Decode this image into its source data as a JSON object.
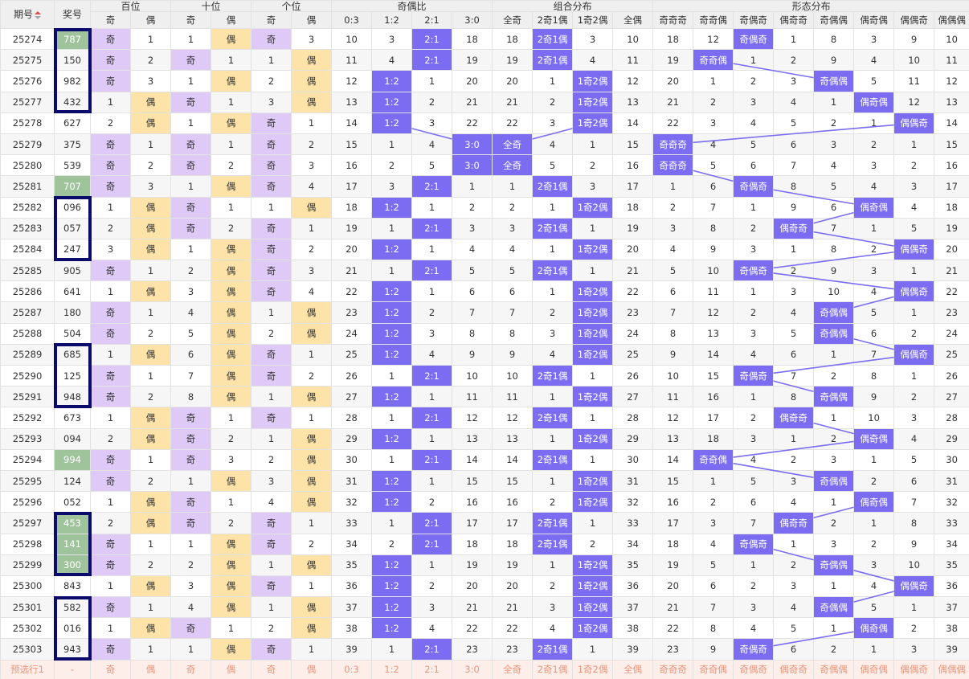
{
  "table": {
    "header": {
      "period": "期号",
      "number": "奖号",
      "groups": [
        {
          "title": "百位",
          "columns": [
            "奇",
            "偶"
          ]
        },
        {
          "title": "十位",
          "columns": [
            "奇",
            "偶"
          ]
        },
        {
          "title": "个位",
          "columns": [
            "奇",
            "偶"
          ]
        },
        {
          "title": "奇偶比",
          "columns": [
            "0:3",
            "1:2",
            "2:1",
            "3:0"
          ]
        },
        {
          "title": "组合分布",
          "columns": [
            "全奇",
            "2奇1偶",
            "1奇2偶",
            "全偶"
          ]
        },
        {
          "title": "形态分布",
          "columns": [
            "奇奇奇",
            "奇奇偶",
            "奇偶奇",
            "偶奇奇",
            "奇偶偶",
            "偶奇偶",
            "偶偶奇",
            "偶偶偶"
          ]
        }
      ]
    },
    "rows": [
      [
        "25274",
        "787",
        "奇",
        1,
        1,
        "偶",
        "奇",
        3,
        10,
        3,
        "2:1",
        18,
        18,
        "2奇1偶",
        3,
        10,
        18,
        12,
        "奇偶奇",
        1,
        8,
        3,
        9,
        10
      ],
      [
        "25275",
        "150",
        "奇",
        2,
        "奇",
        1,
        1,
        "偶",
        11,
        4,
        "2:1",
        19,
        19,
        "2奇1偶",
        4,
        11,
        19,
        "奇奇偶",
        1,
        2,
        9,
        4,
        10,
        11
      ],
      [
        "25276",
        "982",
        "奇",
        3,
        1,
        "偶",
        2,
        "偶",
        12,
        "1:2",
        1,
        20,
        20,
        1,
        "1奇2偶",
        12,
        20,
        1,
        2,
        3,
        "奇偶偶",
        5,
        11,
        12
      ],
      [
        "25277",
        "432",
        1,
        "偶",
        "奇",
        1,
        3,
        "偶",
        13,
        "1:2",
        2,
        21,
        21,
        2,
        "1奇2偶",
        13,
        21,
        2,
        3,
        4,
        1,
        "偶奇偶",
        12,
        13
      ],
      [
        "25278",
        "627",
        2,
        "偶",
        1,
        "偶",
        "奇",
        1,
        14,
        "1:2",
        3,
        22,
        22,
        3,
        "1奇2偶",
        14,
        22,
        3,
        4,
        5,
        2,
        1,
        "偶偶奇",
        14
      ],
      [
        "25279",
        "375",
        "奇",
        1,
        "奇",
        1,
        "奇",
        2,
        15,
        1,
        4,
        "3:0",
        "全奇",
        4,
        1,
        15,
        "奇奇奇",
        4,
        5,
        6,
        3,
        2,
        1,
        15
      ],
      [
        "25280",
        "539",
        "奇",
        2,
        "奇",
        2,
        "奇",
        3,
        16,
        2,
        5,
        "3:0",
        "全奇",
        5,
        2,
        16,
        "奇奇奇",
        5,
        6,
        7,
        4,
        3,
        2,
        16
      ],
      [
        "25281",
        "707",
        "奇",
        3,
        1,
        "偶",
        "奇",
        4,
        17,
        3,
        "2:1",
        1,
        1,
        "2奇1偶",
        3,
        17,
        1,
        6,
        "奇偶奇",
        8,
        5,
        4,
        3,
        17
      ],
      [
        "25282",
        "096",
        1,
        "偶",
        "奇",
        1,
        1,
        "偶",
        18,
        "1:2",
        1,
        2,
        2,
        1,
        "1奇2偶",
        18,
        2,
        7,
        1,
        9,
        6,
        "偶奇偶",
        4,
        18
      ],
      [
        "25283",
        "057",
        2,
        "偶",
        "奇",
        2,
        "奇",
        1,
        19,
        1,
        "2:1",
        3,
        3,
        "2奇1偶",
        1,
        19,
        3,
        8,
        2,
        "偶奇奇",
        7,
        1,
        5,
        19
      ],
      [
        "25284",
        "247",
        3,
        "偶",
        1,
        "偶",
        "奇",
        2,
        20,
        "1:2",
        1,
        4,
        4,
        1,
        "1奇2偶",
        20,
        4,
        9,
        3,
        1,
        8,
        2,
        "偶偶奇",
        20
      ],
      [
        "25285",
        "905",
        "奇",
        1,
        2,
        "偶",
        "奇",
        3,
        21,
        1,
        "2:1",
        5,
        5,
        "2奇1偶",
        1,
        21,
        5,
        10,
        "奇偶奇",
        2,
        9,
        3,
        1,
        21
      ],
      [
        "25286",
        "641",
        1,
        "偶",
        3,
        "偶",
        "奇",
        4,
        22,
        "1:2",
        1,
        6,
        6,
        1,
        "1奇2偶",
        22,
        6,
        11,
        1,
        3,
        10,
        4,
        "偶偶奇",
        22
      ],
      [
        "25287",
        "180",
        "奇",
        1,
        4,
        "偶",
        1,
        "偶",
        23,
        "1:2",
        2,
        7,
        7,
        2,
        "1奇2偶",
        23,
        7,
        12,
        2,
        4,
        "奇偶偶",
        5,
        1,
        23
      ],
      [
        "25288",
        "504",
        "奇",
        2,
        5,
        "偶",
        2,
        "偶",
        24,
        "1:2",
        3,
        8,
        8,
        3,
        "1奇2偶",
        24,
        8,
        13,
        3,
        5,
        "奇偶偶",
        6,
        2,
        24
      ],
      [
        "25289",
        "685",
        1,
        "偶",
        6,
        "偶",
        "奇",
        1,
        25,
        "1:2",
        4,
        9,
        9,
        4,
        "1奇2偶",
        25,
        9,
        14,
        4,
        6,
        1,
        7,
        "偶偶奇",
        25
      ],
      [
        "25290",
        "125",
        "奇",
        1,
        7,
        "偶",
        "奇",
        2,
        26,
        1,
        "2:1",
        10,
        10,
        "2奇1偶",
        1,
        26,
        10,
        15,
        "奇偶奇",
        7,
        2,
        8,
        1,
        26
      ],
      [
        "25291",
        "948",
        "奇",
        2,
        8,
        "偶",
        1,
        "偶",
        27,
        "1:2",
        1,
        11,
        11,
        1,
        "1奇2偶",
        27,
        11,
        16,
        1,
        8,
        "奇偶偶",
        9,
        2,
        27
      ],
      [
        "25292",
        "673",
        1,
        "偶",
        "奇",
        1,
        "奇",
        1,
        28,
        1,
        "2:1",
        12,
        12,
        "2奇1偶",
        1,
        28,
        12,
        17,
        2,
        "偶奇奇",
        1,
        10,
        3,
        28
      ],
      [
        "25293",
        "094",
        2,
        "偶",
        "奇",
        2,
        1,
        "偶",
        29,
        "1:2",
        1,
        13,
        13,
        1,
        "1奇2偶",
        29,
        13,
        18,
        3,
        1,
        2,
        "偶奇偶",
        4,
        29
      ],
      [
        "25294",
        "994",
        "奇",
        1,
        "奇",
        3,
        2,
        "偶",
        30,
        1,
        "2:1",
        14,
        14,
        "2奇1偶",
        1,
        30,
        14,
        "奇奇偶",
        4,
        2,
        3,
        1,
        5,
        30
      ],
      [
        "25295",
        "124",
        "奇",
        2,
        1,
        "偶",
        3,
        "偶",
        31,
        "1:2",
        1,
        15,
        15,
        1,
        "1奇2偶",
        31,
        15,
        1,
        5,
        3,
        "奇偶偶",
        2,
        6,
        31
      ],
      [
        "25296",
        "052",
        1,
        "偶",
        "奇",
        1,
        4,
        "偶",
        32,
        "1:2",
        2,
        16,
        16,
        2,
        "1奇2偶",
        32,
        16,
        2,
        6,
        4,
        1,
        "偶奇偶",
        7,
        32
      ],
      [
        "25297",
        "453",
        2,
        "偶",
        "奇",
        2,
        "奇",
        1,
        33,
        1,
        "2:1",
        17,
        17,
        "2奇1偶",
        1,
        33,
        17,
        3,
        7,
        "偶奇奇",
        2,
        1,
        8,
        33
      ],
      [
        "25298",
        "141",
        "奇",
        1,
        1,
        "偶",
        "奇",
        2,
        34,
        2,
        "2:1",
        18,
        18,
        "2奇1偶",
        2,
        34,
        18,
        4,
        "奇偶奇",
        1,
        3,
        2,
        9,
        34
      ],
      [
        "25299",
        "300",
        "奇",
        2,
        2,
        "偶",
        1,
        "偶",
        35,
        "1:2",
        1,
        19,
        19,
        1,
        "1奇2偶",
        35,
        19,
        5,
        1,
        2,
        "奇偶偶",
        3,
        10,
        35
      ],
      [
        "25300",
        "843",
        1,
        "偶",
        3,
        "偶",
        "奇",
        1,
        36,
        "1:2",
        2,
        20,
        20,
        2,
        "1奇2偶",
        36,
        20,
        6,
        2,
        3,
        1,
        4,
        "偶偶奇",
        36
      ],
      [
        "25301",
        "582",
        "奇",
        1,
        4,
        "偶",
        1,
        "偶",
        37,
        "1:2",
        3,
        21,
        21,
        3,
        "1奇2偶",
        37,
        21,
        7,
        3,
        4,
        "奇偶偶",
        5,
        1,
        37
      ],
      [
        "25302",
        "016",
        1,
        "偶",
        "奇",
        1,
        2,
        "偶",
        38,
        "1:2",
        4,
        22,
        22,
        4,
        "1奇2偶",
        38,
        22,
        8,
        4,
        5,
        1,
        "偶奇偶",
        2,
        38
      ],
      [
        "25303",
        "943",
        "奇",
        1,
        1,
        "偶",
        "奇",
        1,
        39,
        1,
        "2:1",
        23,
        23,
        "2奇1偶",
        1,
        39,
        23,
        9,
        "奇偶奇",
        6,
        2,
        1,
        3,
        39
      ]
    ],
    "footer": [
      "预选行1",
      "-",
      "奇",
      "偶",
      "奇",
      "偶",
      "奇",
      "偶",
      "0:3",
      "1:2",
      "2:1",
      "3:0",
      "全奇",
      "2奇1偶",
      "1奇2偶",
      "全偶",
      "奇奇奇",
      "奇奇偶",
      "奇偶奇",
      "偶奇奇",
      "奇偶偶",
      "偶奇偶",
      "偶偶奇",
      "偶偶偶"
    ]
  }
}
